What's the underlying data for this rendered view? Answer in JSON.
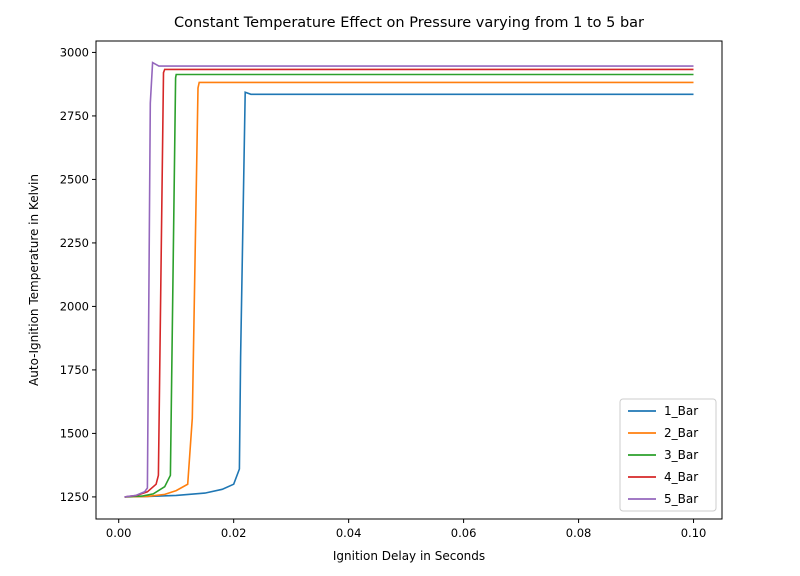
{
  "chart_data": {
    "type": "line",
    "title": "Constant Temperature Effect on Pressure varying from 1 to 5 bar",
    "xlabel": "Ignition Delay in Seconds",
    "ylabel": "Auto-Ignition Temperature in Kelvin",
    "xlim": [
      -0.00395,
      0.10495
    ],
    "ylim": [
      1163,
      3045
    ],
    "xticks": [
      0.0,
      0.02,
      0.04,
      0.06,
      0.08,
      0.1
    ],
    "xtick_labels": [
      "0.00",
      "0.02",
      "0.04",
      "0.06",
      "0.08",
      "0.10"
    ],
    "yticks": [
      1250,
      1500,
      1750,
      2000,
      2250,
      2500,
      2750,
      3000
    ],
    "ytick_labels": [
      "1250",
      "1500",
      "1750",
      "2000",
      "2250",
      "2500",
      "2750",
      "3000"
    ],
    "grid": false,
    "legend_position": "lower right",
    "series": [
      {
        "name": "1_Bar",
        "color": "#1f77b4",
        "x": [
          0.001,
          0.005,
          0.01,
          0.015,
          0.018,
          0.02,
          0.021,
          0.0212,
          0.022,
          0.023,
          0.1
        ],
        "y": [
          1250,
          1252,
          1256,
          1265,
          1280,
          1300,
          1360,
          1800,
          2843,
          2835,
          2835
        ]
      },
      {
        "name": "2_Bar",
        "color": "#ff7f0e",
        "x": [
          0.001,
          0.005,
          0.008,
          0.01,
          0.012,
          0.0128,
          0.0138,
          0.014,
          0.1
        ],
        "y": [
          1250,
          1252,
          1260,
          1275,
          1300,
          1560,
          2860,
          2882,
          2882
        ]
      },
      {
        "name": "3_Bar",
        "color": "#2ca02c",
        "x": [
          0.001,
          0.004,
          0.006,
          0.008,
          0.009,
          0.0099,
          0.01,
          0.1
        ],
        "y": [
          1250,
          1253,
          1262,
          1290,
          1335,
          2900,
          2913,
          2913
        ]
      },
      {
        "name": "4_Bar",
        "color": "#d62728",
        "x": [
          0.001,
          0.003,
          0.005,
          0.0065,
          0.0069,
          0.0078,
          0.008,
          0.1
        ],
        "y": [
          1250,
          1255,
          1270,
          1300,
          1335,
          2920,
          2933,
          2933
        ]
      },
      {
        "name": "5_Bar",
        "color": "#9467bd",
        "x": [
          0.001,
          0.003,
          0.0045,
          0.005,
          0.0055,
          0.0059,
          0.007,
          0.1
        ],
        "y": [
          1250,
          1256,
          1270,
          1285,
          2800,
          2960,
          2946,
          2946
        ]
      }
    ]
  }
}
